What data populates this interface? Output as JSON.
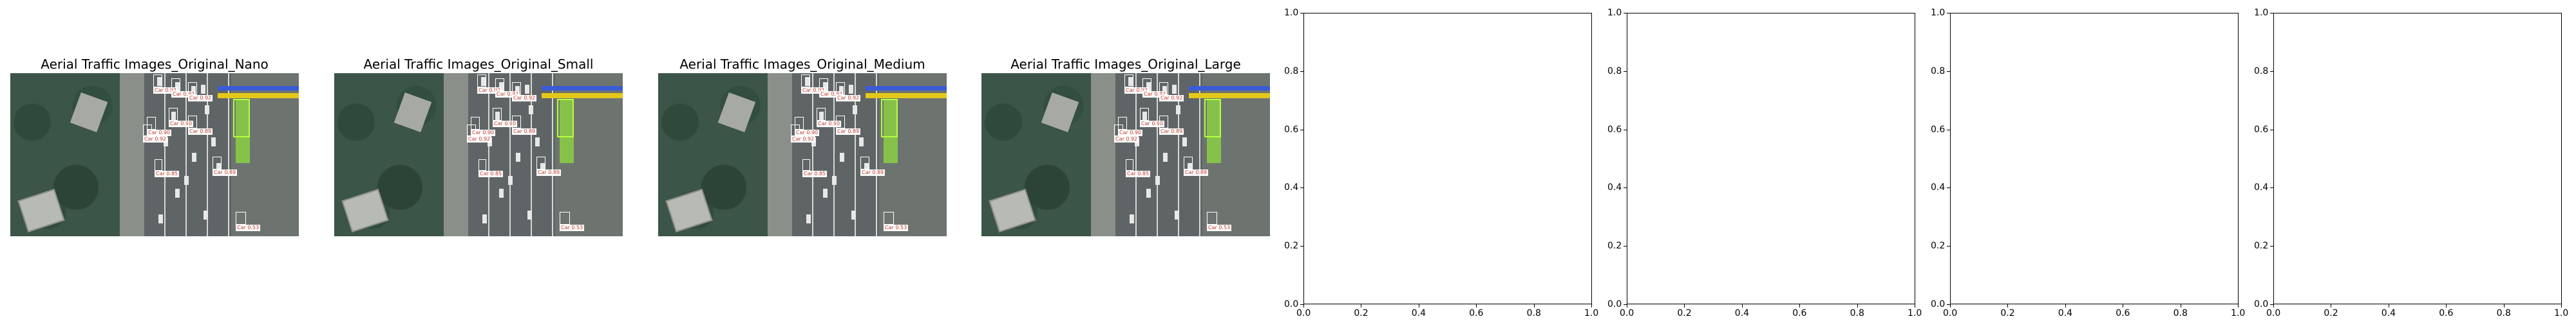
{
  "panels": [
    {
      "title": "Aerial Traffic Images_Original_Nano"
    },
    {
      "title": "Aerial Traffic Images_Original_Small"
    },
    {
      "title": "Aerial Traffic Images_Original_Medium"
    },
    {
      "title": "Aerial Traffic Images_Original_Large"
    }
  ],
  "detections": {
    "labels": [
      "Car 0.92",
      "Car 0.92",
      "Car 0.92",
      "Car 0.90",
      "Car 0.90",
      "Car 0.89",
      "Car 0.92",
      "Car 0.85",
      "Car 0.89",
      "Car 0.53"
    ]
  },
  "empty_axes": {
    "x_ticks": [
      "0.0",
      "0.2",
      "0.4",
      "0.6",
      "0.8",
      "1.0"
    ],
    "y_ticks": [
      "0.0",
      "0.2",
      "0.4",
      "0.6",
      "0.8",
      "1.0"
    ]
  }
}
